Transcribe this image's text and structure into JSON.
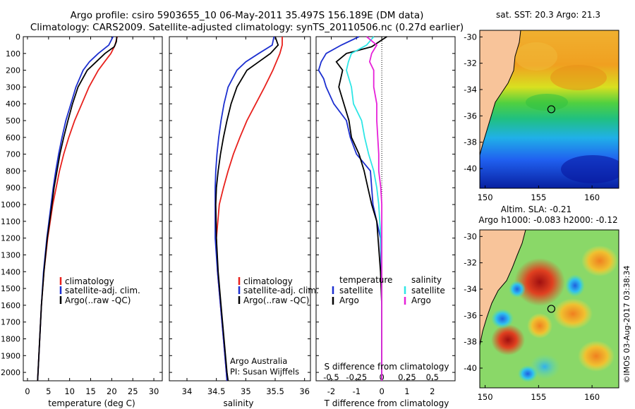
{
  "header": {
    "title_line1": "Argo profile: csiro 5903655_10 06-May-2011 35.497S 156.189E (DM data)",
    "title_line2": "Climatology: CARS2009. Satellite-adjusted climatology: synTS_20110506.nc (0.27d earlier)"
  },
  "colors": {
    "climatology": "#e8201c",
    "satellite": "#1c2fd0",
    "argo": "#000000",
    "salinity_satellite": "#2ee6e6",
    "salinity_argo": "#e620d8",
    "land": "#f8c49a"
  },
  "chart_data": [
    {
      "type": "line",
      "id": "temperature",
      "xlabel": "temperature (deg C)",
      "xlim": [
        -1,
        32
      ],
      "xticks": [
        "0",
        "5",
        "10",
        "15",
        "20",
        "25",
        "30"
      ],
      "xtick_values": [
        0,
        5,
        10,
        15,
        20,
        25,
        30
      ],
      "ylim": [
        0,
        2050
      ],
      "yticks": [
        "0",
        "100",
        "200",
        "300",
        "400",
        "500",
        "600",
        "700",
        "800",
        "900",
        "1000",
        "1100",
        "1200",
        "1300",
        "1400",
        "1500",
        "1600",
        "1700",
        "1800",
        "1900",
        "2000"
      ],
      "ytick_values": [
        0,
        100,
        200,
        300,
        400,
        500,
        600,
        700,
        800,
        900,
        1000,
        1100,
        1200,
        1300,
        1400,
        1500,
        1600,
        1700,
        1800,
        1900,
        2000
      ],
      "legend": [
        "climatology",
        "satellite-adj. clim.",
        "Argo(..raw -QC)"
      ],
      "series": [
        {
          "name": "climatology",
          "depth": [
            0,
            50,
            100,
            150,
            200,
            300,
            400,
            500,
            600,
            700,
            800,
            900,
            1000,
            1200,
            1400,
            1600,
            1800,
            2000,
            2050
          ],
          "values": [
            21.3,
            20.8,
            19.8,
            18.3,
            16.8,
            14.6,
            12.9,
            11.2,
            9.8,
            8.6,
            7.6,
            6.8,
            6.0,
            4.8,
            3.9,
            3.3,
            2.9,
            2.5,
            2.4
          ]
        },
        {
          "name": "satellite-adj. clim.",
          "depth": [
            0,
            50,
            100,
            150,
            200,
            300,
            400,
            500,
            600,
            700,
            800,
            900,
            1000,
            1200,
            1400,
            1600,
            1800,
            2000,
            2050
          ],
          "values": [
            20.3,
            19.3,
            16.8,
            14.7,
            13.2,
            11.5,
            10.3,
            9.1,
            8.2,
            7.4,
            6.7,
            6.1,
            5.6,
            4.6,
            3.8,
            3.3,
            2.9,
            2.5,
            2.4
          ]
        },
        {
          "name": "Argo(..raw -QC)",
          "depth": [
            0,
            30,
            60,
            100,
            150,
            200,
            300,
            400,
            500,
            600,
            700,
            800,
            900,
            1000,
            1200,
            1400,
            1600,
            1800,
            2000,
            2050
          ],
          "values": [
            21.2,
            21.1,
            20.6,
            18.4,
            16.3,
            14.2,
            12.0,
            10.7,
            9.6,
            8.6,
            7.7,
            7.0,
            6.3,
            5.8,
            4.7,
            3.9,
            3.3,
            2.9,
            2.5,
            2.4
          ]
        }
      ]
    },
    {
      "type": "line",
      "id": "salinity",
      "xlabel": "salinity",
      "xlim": [
        33.7,
        36.1
      ],
      "xticks": [
        "34",
        "34.5",
        "35",
        "35.5",
        "36"
      ],
      "xtick_values": [
        34,
        34.5,
        35,
        35.5,
        36
      ],
      "ylim": [
        0,
        2050
      ],
      "legend": [
        "climatology",
        "satellite-adj. clim.",
        "Argo(..raw -QC)"
      ],
      "annotation_line1": "Argo Australia",
      "annotation_line2": "PI: Susan Wijffels",
      "series": [
        {
          "name": "climatology",
          "depth": [
            0,
            50,
            100,
            150,
            200,
            300,
            400,
            500,
            600,
            700,
            800,
            900,
            1000,
            1200,
            1400,
            1600,
            1800,
            2000,
            2050
          ],
          "values": [
            35.62,
            35.62,
            35.58,
            35.52,
            35.46,
            35.32,
            35.17,
            35.02,
            34.9,
            34.79,
            34.7,
            34.62,
            34.55,
            34.5,
            34.52,
            34.57,
            34.62,
            34.67,
            34.68
          ]
        },
        {
          "name": "satellite-adj. clim.",
          "depth": [
            0,
            50,
            100,
            150,
            200,
            300,
            400,
            500,
            600,
            700,
            800,
            900,
            1000,
            1200,
            1400,
            1600,
            1800,
            2000,
            2050
          ],
          "values": [
            35.48,
            35.45,
            35.22,
            35.0,
            34.85,
            34.7,
            34.63,
            34.58,
            34.54,
            34.51,
            34.49,
            34.48,
            34.48,
            34.48,
            34.52,
            34.57,
            34.62,
            34.67,
            34.68
          ]
        },
        {
          "name": "Argo(..raw -QC)",
          "depth": [
            0,
            50,
            100,
            150,
            200,
            300,
            400,
            500,
            600,
            700,
            800,
            900,
            1000,
            1200,
            1400,
            1600,
            1800,
            2000,
            2050
          ],
          "values": [
            35.5,
            35.55,
            35.42,
            35.22,
            35.02,
            34.85,
            34.75,
            34.68,
            34.62,
            34.57,
            34.53,
            34.5,
            34.49,
            34.5,
            34.53,
            34.58,
            34.63,
            34.68,
            34.7
          ]
        }
      ]
    },
    {
      "type": "line",
      "id": "difference",
      "xlabel": "T difference from climatology",
      "xlabel_top": "S difference from climatology",
      "xlim": [
        -2.6,
        2.9
      ],
      "xticks": [
        "-2",
        "-1",
        "0",
        "1",
        "2"
      ],
      "xtick_values": [
        -2,
        -1,
        0,
        1,
        2
      ],
      "xticks_salinity": [
        "-0.5",
        "-0.25",
        "0",
        "0.25",
        "0.5"
      ],
      "xtick_values_salinity": [
        -0.5,
        -0.25,
        0,
        0.25,
        0.5
      ],
      "ylim": [
        0,
        2050
      ],
      "legend_temperature_title": "temperature",
      "legend_salinity_title": "salinity",
      "legend": [
        "satellite",
        "Argo",
        "satellite",
        "Argo"
      ],
      "series": [
        {
          "name": "temperature satellite",
          "depth": [
            0,
            50,
            100,
            150,
            200,
            250,
            300,
            400,
            500,
            600,
            700,
            800,
            900,
            1000,
            1100,
            1200,
            1400,
            1600,
            1800,
            2000,
            2050
          ],
          "values": [
            -0.9,
            -1.6,
            -2.2,
            -2.4,
            -2.5,
            -2.3,
            -2.2,
            -1.9,
            -1.4,
            -1.25,
            -1.0,
            -0.45,
            -0.4,
            -0.35,
            -0.2,
            -0.05,
            -0.02,
            0.0,
            0.0,
            0.0,
            0.0
          ]
        },
        {
          "name": "temperature Argo",
          "depth": [
            0,
            30,
            60,
            100,
            150,
            200,
            300,
            400,
            500,
            600,
            700,
            800,
            900,
            1000,
            1100,
            1200,
            1400,
            1600,
            1800,
            2000,
            2050
          ],
          "values": [
            0.2,
            -0.1,
            -0.4,
            -1.4,
            -1.8,
            -1.55,
            -1.7,
            -1.5,
            -1.3,
            -1.2,
            -0.9,
            -0.7,
            -0.55,
            -0.4,
            -0.2,
            -0.15,
            -0.05,
            0.0,
            0.0,
            0.0,
            0.0
          ]
        },
        {
          "name": "salinity satellite",
          "depth": [
            0,
            50,
            100,
            150,
            200,
            300,
            400,
            500,
            600,
            700,
            800,
            900,
            1000,
            1200,
            1400,
            1600,
            1800,
            2000,
            2050
          ],
          "values": [
            -0.08,
            -0.15,
            -0.3,
            -0.33,
            -0.35,
            -0.3,
            -0.28,
            -0.2,
            -0.17,
            -0.13,
            -0.08,
            -0.05,
            -0.03,
            -0.01,
            0.0,
            0.0,
            0.0,
            0.0,
            0.0
          ]
        },
        {
          "name": "salinity Argo",
          "depth": [
            0,
            50,
            100,
            150,
            200,
            300,
            400,
            500,
            600,
            700,
            800,
            900,
            1000,
            1200,
            1400,
            1600,
            1800,
            2000,
            2050
          ],
          "values": [
            -0.15,
            -0.05,
            -0.1,
            -0.12,
            -0.08,
            -0.08,
            -0.05,
            -0.05,
            -0.04,
            -0.03,
            -0.03,
            -0.01,
            0.0,
            0.0,
            0.0,
            0.0,
            0.0,
            0.0,
            0.0
          ]
        }
      ]
    },
    {
      "type": "heatmap",
      "id": "sst-map",
      "title": "sat. SST: 20.3 Argo: 21.3",
      "xticks": [
        "150",
        "155",
        "160"
      ],
      "xtick_values": [
        150,
        155,
        160
      ],
      "yticks": [
        "-30",
        "-32",
        "-34",
        "-36",
        "-38",
        "-40"
      ],
      "ytick_values": [
        -30,
        -32,
        -34,
        -36,
        -38,
        -40
      ],
      "xlim": [
        149.5,
        162.5
      ],
      "ylim": [
        -41.5,
        -29.5
      ],
      "marker": {
        "lon": 156.189,
        "lat": -35.497
      }
    },
    {
      "type": "heatmap",
      "id": "sla-map",
      "title_line1": "Altim. SLA: -0.21",
      "title_line2": "Argo h1000: -0.083 h2000: -0.12",
      "xticks": [
        "150",
        "155",
        "160"
      ],
      "xtick_values": [
        150,
        155,
        160
      ],
      "yticks": [
        "-30",
        "-32",
        "-34",
        "-36",
        "-38",
        "-40"
      ],
      "ytick_values": [
        -30,
        -32,
        -34,
        -36,
        -38,
        -40
      ],
      "xlim": [
        149.5,
        162.5
      ],
      "ylim": [
        -41.5,
        -29.5
      ],
      "marker": {
        "lon": 156.189,
        "lat": -35.497
      }
    }
  ],
  "footer": {
    "credit": "©IMOS 03-Aug-2017 03:38:34"
  }
}
